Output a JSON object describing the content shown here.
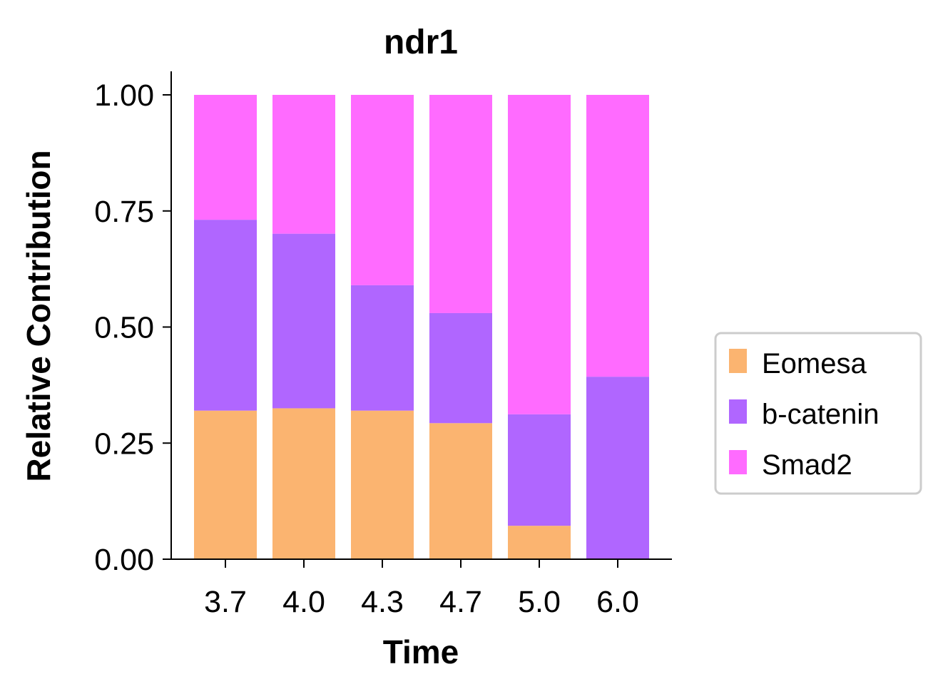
{
  "chart_data": {
    "type": "bar",
    "stacked": true,
    "title": "ndr1",
    "xlabel": "Time",
    "ylabel": "Relative Contribution",
    "categories": [
      "3.7",
      "4.0",
      "4.3",
      "4.7",
      "5.0",
      "6.0"
    ],
    "series": [
      {
        "name": "Eomesa",
        "color": "#fbb470",
        "values": [
          0.32,
          0.325,
          0.32,
          0.293,
          0.072,
          0.0
        ]
      },
      {
        "name": "b-catenin",
        "color": "#b066ff",
        "values": [
          0.411,
          0.376,
          0.27,
          0.237,
          0.24,
          0.393
        ]
      },
      {
        "name": "Smad2",
        "color": "#ff6bff",
        "values": [
          0.269,
          0.299,
          0.41,
          0.47,
          0.688,
          0.607
        ]
      }
    ],
    "ylim": [
      0,
      1.05
    ],
    "yticks": [
      "0.00",
      "0.25",
      "0.50",
      "0.75",
      "1.00"
    ],
    "grid": false,
    "legend_position": "right"
  }
}
